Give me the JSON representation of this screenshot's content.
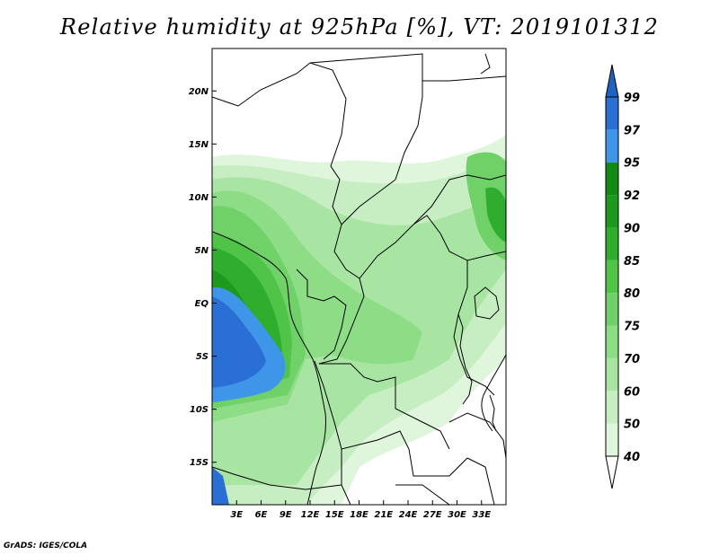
{
  "title": "Relative humidity at 925hPa [%], VT: 2019101312",
  "credit": "GrADS: IGES/COLA",
  "map": {
    "lon_range": [
      0,
      36
    ],
    "lat_range": [
      -19,
      24
    ],
    "lat_ticks": [
      {
        "value": 20,
        "label": "20N"
      },
      {
        "value": 15,
        "label": "15N"
      },
      {
        "value": 10,
        "label": "10N"
      },
      {
        "value": 5,
        "label": "5N"
      },
      {
        "value": 0,
        "label": "EQ"
      },
      {
        "value": -5,
        "label": "5S"
      },
      {
        "value": -10,
        "label": "10S"
      },
      {
        "value": -15,
        "label": "15S"
      }
    ],
    "lon_ticks": [
      {
        "value": 3,
        "label": "3E"
      },
      {
        "value": 6,
        "label": "6E"
      },
      {
        "value": 9,
        "label": "9E"
      },
      {
        "value": 12,
        "label": "12E"
      },
      {
        "value": 15,
        "label": "15E"
      },
      {
        "value": 18,
        "label": "18E"
      },
      {
        "value": 21,
        "label": "21E"
      },
      {
        "value": 24,
        "label": "24E"
      },
      {
        "value": 27,
        "label": "27E"
      },
      {
        "value": 30,
        "label": "30E"
      },
      {
        "value": 33,
        "label": "33E"
      }
    ]
  },
  "colorbar": {
    "levels": [
      {
        "label": "40",
        "color": "#f0fbef"
      },
      {
        "label": "50",
        "color": "#dff5dc"
      },
      {
        "label": "60",
        "color": "#c6eec2"
      },
      {
        "label": "70",
        "color": "#a8e5a2"
      },
      {
        "label": "75",
        "color": "#8ddc86"
      },
      {
        "label": "80",
        "color": "#6fd167"
      },
      {
        "label": "85",
        "color": "#4fc447"
      },
      {
        "label": "90",
        "color": "#2fae2e"
      },
      {
        "label": "92",
        "color": "#1c9a1e"
      },
      {
        "label": "95",
        "color": "#138a14"
      },
      {
        "label": "97",
        "color": "#3f95e8"
      },
      {
        "label": "99",
        "color": "#2a70d4"
      }
    ],
    "low_color": "#ffffff",
    "high_color": "#1f62c2"
  }
}
